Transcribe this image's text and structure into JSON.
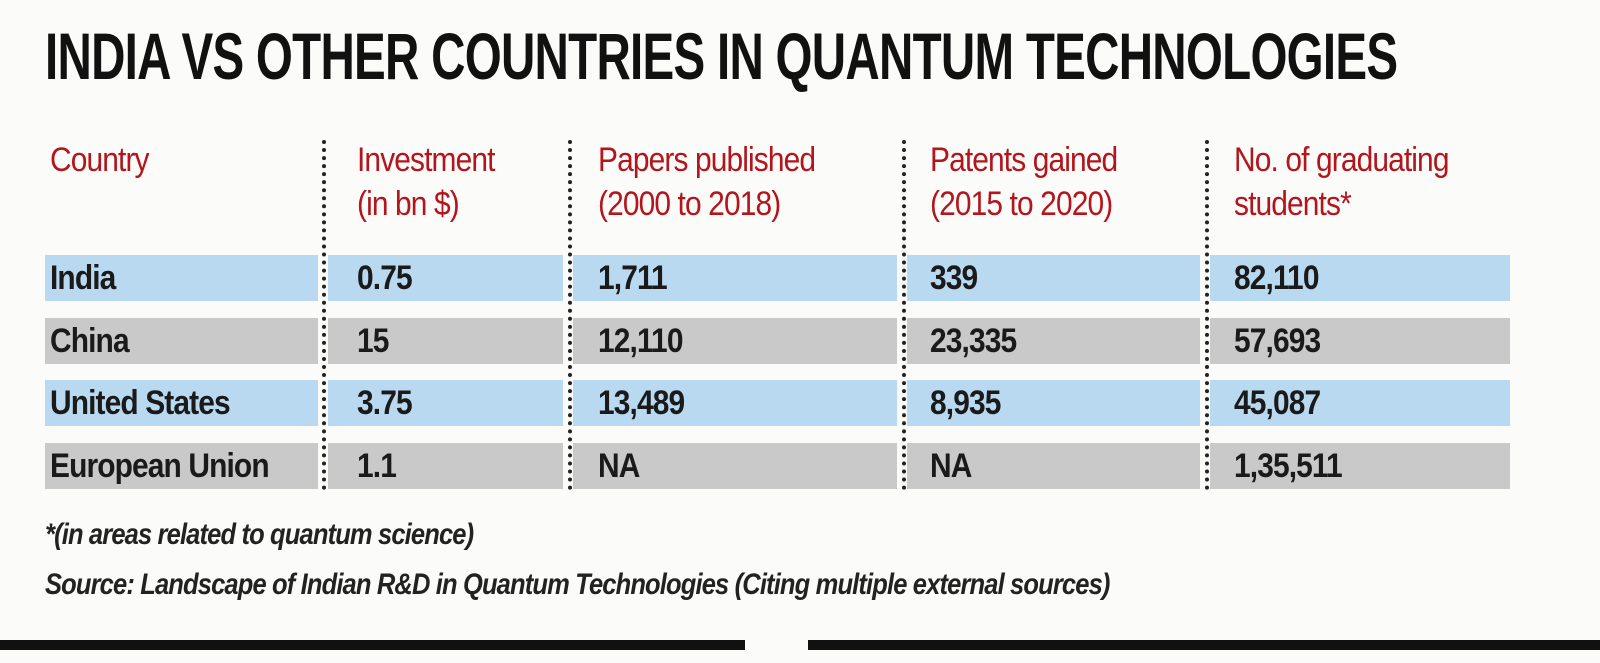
{
  "header": {
    "title": "INDIA VS OTHER COUNTRIES IN QUANTUM TECHNOLOGIES"
  },
  "table": {
    "columns": [
      [
        "Country"
      ],
      [
        "Investment",
        "(in bn $)"
      ],
      [
        "Papers published",
        "(2000 to 2018)"
      ],
      [
        "Patents gained",
        "(2015 to 2020)"
      ],
      [
        "No. of graduating",
        "students*"
      ]
    ],
    "rows": [
      [
        "India",
        "0.75",
        "1,711",
        "339",
        "82,110"
      ],
      [
        "China",
        "15",
        "12,110",
        "23,335",
        "57,693"
      ],
      [
        "United States",
        "3.75",
        "13,489",
        "8,935",
        "45,087"
      ],
      [
        "European Union",
        "1.1",
        "NA",
        "NA",
        "1,35,511"
      ]
    ]
  },
  "footer": {
    "note": "*(in areas related to quantum science)",
    "source": "Source: Landscape of Indian R&D in Quantum Technologies (Citing multiple external sources)"
  }
}
